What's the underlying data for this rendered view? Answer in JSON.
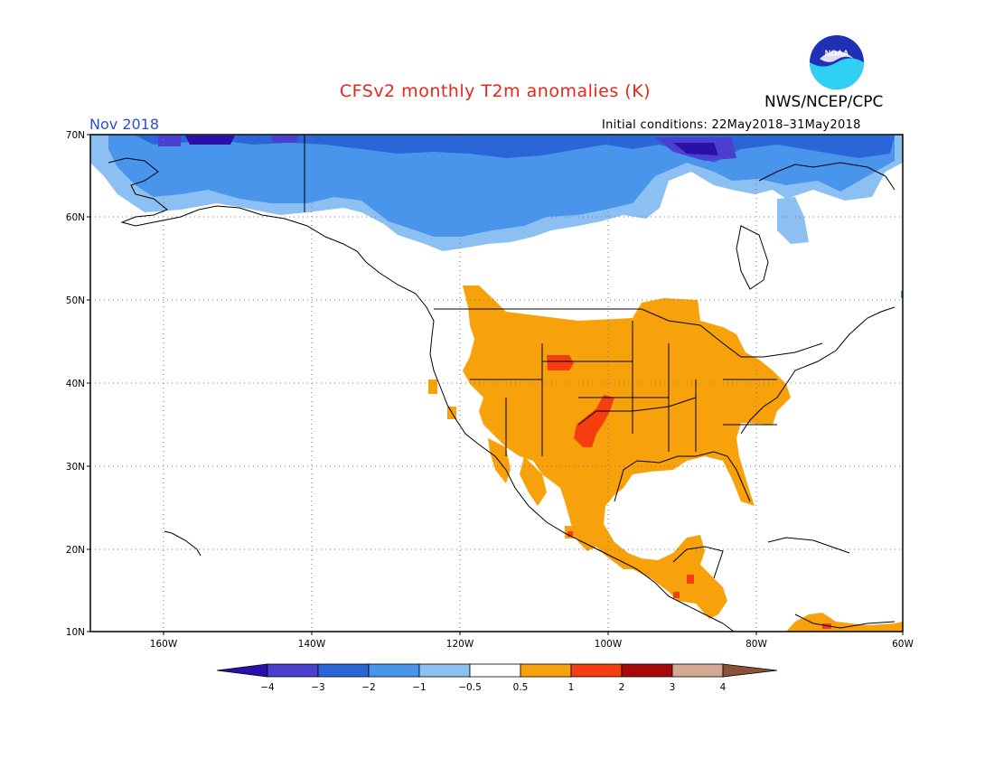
{
  "header": {
    "title": "CFSv2 monthly T2m anomalies (K)",
    "agency": "NWS/NCEP/CPC",
    "month": "Nov 2018",
    "initial_conditions": "Initial conditions: 22May2018–31May2018"
  },
  "logo": {
    "icon": "noaa-logo-icon",
    "text": "NOAA"
  },
  "axes": {
    "lat_labels": [
      "10N",
      "20N",
      "30N",
      "40N",
      "50N",
      "60N",
      "70N"
    ],
    "lon_labels": [
      "160W",
      "140W",
      "120W",
      "100W",
      "80W",
      "60W"
    ]
  },
  "colorbar": {
    "labels": [
      "−4",
      "−3",
      "−2",
      "−1",
      "−0.5",
      "0.5",
      "1",
      "2",
      "3",
      "4"
    ],
    "colors": [
      "#2a0fa8",
      "#4b3fd0",
      "#2a66d8",
      "#4a95ec",
      "#8cbff2",
      "#ffffff",
      "#f7a20b",
      "#f53d10",
      "#a8080a",
      "#d4a892",
      "#8a5238"
    ]
  },
  "legend_colors": {
    "anomaly_minus4": "#2a0fa8",
    "anomaly_minus3": "#4b3fd0",
    "anomaly_minus2": "#2a66d8",
    "anomaly_minus1": "#4a95ec",
    "anomaly_minus05": "#8cbff2",
    "anomaly_plus05": "#f7a20b",
    "anomaly_plus1": "#f53d10",
    "anomaly_plus2": "#a8080a"
  }
}
